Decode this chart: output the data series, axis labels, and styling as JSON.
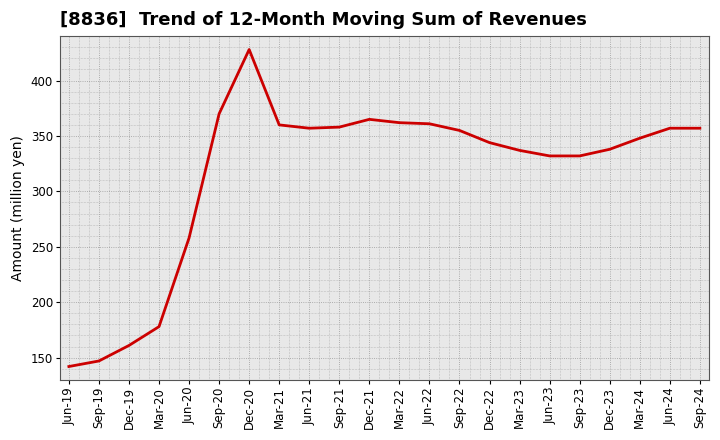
{
  "title": "[8836]  Trend of 12-Month Moving Sum of Revenues",
  "ylabel": "Amount (million yen)",
  "line_color": "#cc0000",
  "line_width": 2.0,
  "background_color": "#ffffff",
  "plot_bg_color": "#e8e8e8",
  "grid_color": "#999999",
  "ylim": [
    130,
    440
  ],
  "yticks": [
    150,
    200,
    250,
    300,
    350,
    400
  ],
  "values": [
    142,
    147,
    161,
    178,
    258,
    370,
    428,
    360,
    357,
    358,
    365,
    362,
    361,
    355,
    344,
    337,
    332,
    332,
    338,
    348,
    357,
    357
  ],
  "xtick_labels": [
    "Jun-19",
    "Sep-19",
    "Dec-19",
    "Mar-20",
    "Jun-20",
    "Sep-20",
    "Dec-20",
    "Mar-21",
    "Jun-21",
    "Sep-21",
    "Dec-21",
    "Mar-22",
    "Jun-22",
    "Sep-22",
    "Dec-22",
    "Mar-23",
    "Jun-23",
    "Sep-23",
    "Dec-23",
    "Mar-24",
    "Jun-24",
    "Sep-24"
  ],
  "title_fontsize": 13,
  "label_fontsize": 10,
  "tick_fontsize": 8.5
}
